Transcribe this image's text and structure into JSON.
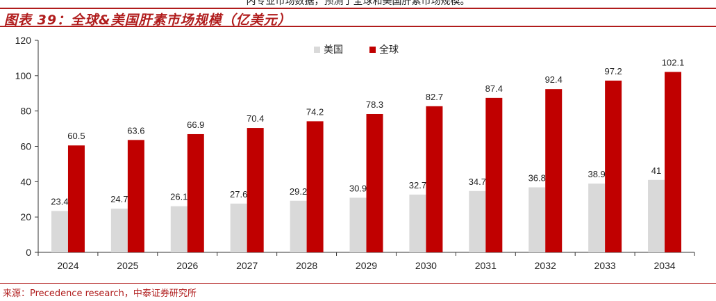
{
  "top_text": "内专业市场数据，预测了全球和美国肝素市场规模。",
  "title": "图表 39：全球&美国肝素市场规模（亿美元）",
  "source": "来源：Precedence research，中泰证券研究所",
  "colors": {
    "accent": "#b01c1c",
    "us": "#d9d9d9",
    "global": "#c00000"
  },
  "chart_data": {
    "type": "bar",
    "categories": [
      "2024",
      "2025",
      "2026",
      "2027",
      "2028",
      "2029",
      "2030",
      "2031",
      "2032",
      "2033",
      "2034"
    ],
    "series": [
      {
        "name": "美国",
        "values": [
          23.4,
          24.7,
          26.1,
          27.6,
          29.2,
          30.9,
          32.7,
          34.7,
          36.8,
          38.9,
          41
        ]
      },
      {
        "name": "全球",
        "values": [
          60.5,
          63.6,
          66.9,
          70.4,
          74.2,
          78.3,
          82.7,
          87.4,
          92.4,
          97.2,
          102.1
        ]
      }
    ],
    "ylim": [
      0,
      120
    ],
    "yticks": [
      0,
      20,
      40,
      60,
      80,
      100,
      120
    ],
    "legend_position": "top-center",
    "grid": false
  }
}
